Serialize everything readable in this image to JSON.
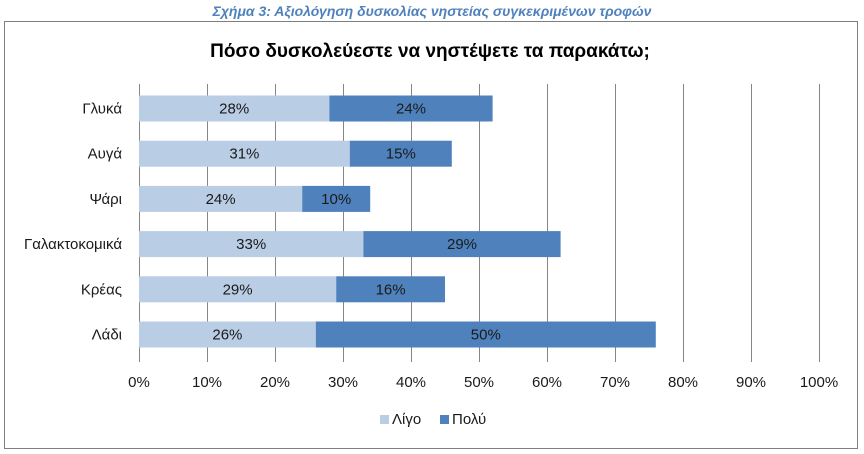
{
  "caption": "Σχήμα 3: Αξιολόγηση δυσκολίας νηστείας συγκεκριμένων τροφών",
  "chart_data": {
    "type": "bar",
    "orientation": "horizontal",
    "stacked": true,
    "title": "Πόσο δυσκολεύεστε να νηστέψετε τα παρακάτω;",
    "categories": [
      "Γλυκά",
      "Αυγά",
      "Ψάρι",
      "Γαλακτοκομικά",
      "Κρέας",
      "Λάδι"
    ],
    "series": [
      {
        "name": "Λίγο",
        "values": [
          28,
          31,
          24,
          33,
          29,
          26
        ],
        "labels": [
          "28%",
          "31%",
          "24%",
          "33%",
          "29%",
          "26%"
        ],
        "color": "#b9cde5"
      },
      {
        "name": "Πολύ",
        "values": [
          24,
          15,
          10,
          29,
          16,
          50
        ],
        "labels": [
          "24%",
          "15%",
          "10%",
          "29%",
          "16%",
          "50%"
        ],
        "color": "#4f81bd"
      }
    ],
    "xlim": [
      0,
      100
    ],
    "xticks": [
      "0%",
      "10%",
      "20%",
      "30%",
      "40%",
      "50%",
      "60%",
      "70%",
      "80%",
      "90%",
      "100%"
    ],
    "grid": true,
    "legend_position": "bottom"
  }
}
